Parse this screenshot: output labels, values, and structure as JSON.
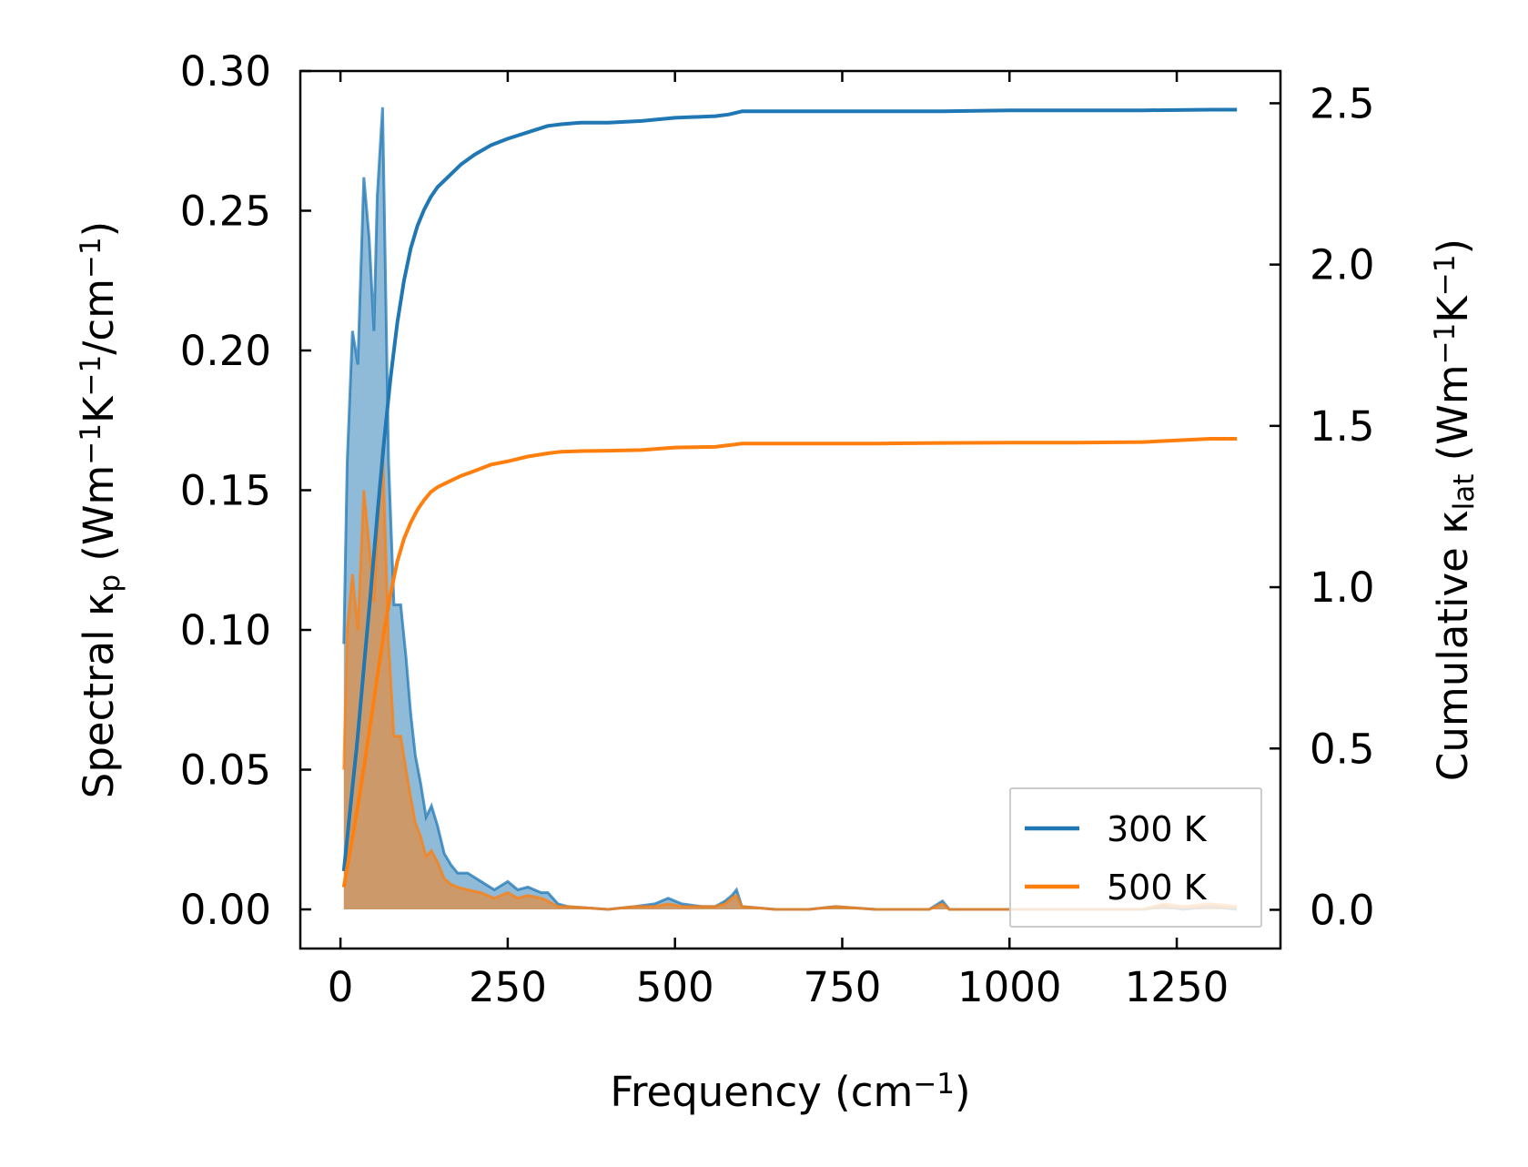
{
  "chart_data": {
    "type": "line",
    "title": "",
    "xlabel": {
      "text": "Frequency (cm",
      "sup": "−1",
      "tail": ")"
    },
    "ylabel_left": {
      "parts": [
        {
          "t": "Spectral κ",
          "s": "n"
        },
        {
          "t": "p",
          "s": "sub"
        },
        {
          "t": " (Wm",
          "s": "n"
        },
        {
          "t": "−1",
          "s": "sup"
        },
        {
          "t": "K",
          "s": "n"
        },
        {
          "t": "−1",
          "s": "sup"
        },
        {
          "t": "/cm",
          "s": "n"
        },
        {
          "t": "−1",
          "s": "sup"
        },
        {
          "t": ")",
          "s": "n"
        }
      ]
    },
    "ylabel_right": {
      "parts": [
        {
          "t": "Cumulative κ",
          "s": "n"
        },
        {
          "t": "lat",
          "s": "sub"
        },
        {
          "t": " (Wm",
          "s": "n"
        },
        {
          "t": "−1",
          "s": "sup"
        },
        {
          "t": "K",
          "s": "n"
        },
        {
          "t": "−1",
          "s": "sup"
        },
        {
          "t": ")",
          "s": "n"
        }
      ]
    },
    "xlim": [
      -60,
      1405
    ],
    "ylim_left": [
      -0.014,
      0.3
    ],
    "ylim_right": [
      -0.12,
      2.6
    ],
    "xticks": [
      {
        "v": 0,
        "label": "0"
      },
      {
        "v": 250,
        "label": "250"
      },
      {
        "v": 500,
        "label": "500"
      },
      {
        "v": 750,
        "label": "750"
      },
      {
        "v": 1000,
        "label": "1000"
      },
      {
        "v": 1250,
        "label": "1250"
      }
    ],
    "yticks_left": [
      {
        "v": 0.0,
        "label": "0.00"
      },
      {
        "v": 0.05,
        "label": "0.05"
      },
      {
        "v": 0.1,
        "label": "0.10"
      },
      {
        "v": 0.15,
        "label": "0.15"
      },
      {
        "v": 0.2,
        "label": "0.20"
      },
      {
        "v": 0.25,
        "label": "0.25"
      },
      {
        "v": 0.3,
        "label": "0.30"
      }
    ],
    "yticks_right": [
      {
        "v": 0.0,
        "label": "0.0"
      },
      {
        "v": 0.5,
        "label": "0.5"
      },
      {
        "v": 1.0,
        "label": "1.0"
      },
      {
        "v": 1.5,
        "label": "1.5"
      },
      {
        "v": 2.0,
        "label": "2.0"
      },
      {
        "v": 2.5,
        "label": "2.5"
      }
    ],
    "legend": {
      "position": "bottom-right"
    },
    "series": [
      {
        "name": "300 K",
        "color": "#1f77b4",
        "spectral": {
          "x": [
            5,
            10,
            18,
            26,
            35,
            43,
            50,
            55,
            63,
            72,
            80,
            90,
            98,
            105,
            112,
            120,
            128,
            136,
            145,
            155,
            165,
            175,
            190,
            210,
            230,
            250,
            265,
            280,
            300,
            310,
            325,
            340,
            400,
            440,
            470,
            490,
            510,
            540,
            560,
            575,
            585,
            592,
            600,
            650,
            700,
            740,
            800,
            850,
            880,
            900,
            910,
            950,
            1000,
            1100,
            1200,
            1230,
            1260,
            1300,
            1340
          ],
          "y": [
            0.095,
            0.16,
            0.207,
            0.195,
            0.262,
            0.24,
            0.207,
            0.255,
            0.287,
            0.16,
            0.109,
            0.109,
            0.09,
            0.07,
            0.055,
            0.045,
            0.033,
            0.037,
            0.03,
            0.02,
            0.016,
            0.013,
            0.013,
            0.01,
            0.007,
            0.01,
            0.007,
            0.008,
            0.006,
            0.006,
            0.002,
            0.001,
            0.0,
            0.001,
            0.002,
            0.004,
            0.002,
            0.001,
            0.001,
            0.003,
            0.005,
            0.007,
            0.001,
            0.0,
            0.0,
            0.001,
            0.0,
            0.0,
            0.0,
            0.003,
            0.0,
            0.0,
            0.0,
            0.0,
            0.0,
            0.001,
            0.0,
            0.001,
            0.0
          ]
        },
        "cumulative": {
          "x": [
            5,
            15,
            25,
            35,
            45,
            55,
            65,
            75,
            85,
            95,
            105,
            115,
            125,
            135,
            145,
            155,
            165,
            180,
            200,
            225,
            250,
            280,
            310,
            330,
            360,
            400,
            450,
            500,
            560,
            580,
            600,
            700,
            800,
            900,
            1000,
            1100,
            1200,
            1300,
            1340
          ],
          "y": [
            0.12,
            0.32,
            0.52,
            0.75,
            0.98,
            1.22,
            1.45,
            1.65,
            1.82,
            1.95,
            2.05,
            2.12,
            2.17,
            2.21,
            2.24,
            2.26,
            2.28,
            2.31,
            2.34,
            2.37,
            2.39,
            2.41,
            2.43,
            2.435,
            2.44,
            2.44,
            2.445,
            2.455,
            2.46,
            2.465,
            2.475,
            2.475,
            2.475,
            2.475,
            2.478,
            2.478,
            2.478,
            2.48,
            2.48
          ]
        }
      },
      {
        "name": "500 K",
        "color": "#ff7f0e",
        "spectral": {
          "x": [
            5,
            10,
            18,
            26,
            35,
            43,
            50,
            55,
            63,
            72,
            80,
            90,
            98,
            105,
            112,
            120,
            128,
            136,
            145,
            155,
            165,
            175,
            190,
            210,
            230,
            250,
            265,
            280,
            300,
            310,
            325,
            340,
            400,
            440,
            470,
            490,
            510,
            540,
            560,
            575,
            585,
            592,
            600,
            650,
            700,
            740,
            800,
            850,
            880,
            900,
            910,
            950,
            1000,
            1100,
            1200,
            1230,
            1260,
            1300,
            1340
          ],
          "y": [
            0.05,
            0.1,
            0.12,
            0.1,
            0.15,
            0.13,
            0.11,
            0.135,
            0.165,
            0.095,
            0.062,
            0.062,
            0.05,
            0.04,
            0.031,
            0.026,
            0.019,
            0.021,
            0.017,
            0.011,
            0.009,
            0.008,
            0.007,
            0.006,
            0.004,
            0.006,
            0.004,
            0.005,
            0.004,
            0.003,
            0.001,
            0.001,
            0.0,
            0.001,
            0.001,
            0.002,
            0.001,
            0.001,
            0.001,
            0.002,
            0.004,
            0.005,
            0.001,
            0.0,
            0.0,
            0.001,
            0.0,
            0.0,
            0.0,
            0.002,
            0.0,
            0.0,
            0.0,
            0.0,
            0.0,
            0.002,
            0.001,
            0.002,
            0.001
          ]
        },
        "cumulative": {
          "x": [
            5,
            15,
            25,
            35,
            45,
            55,
            65,
            75,
            85,
            95,
            105,
            115,
            125,
            135,
            145,
            155,
            165,
            180,
            200,
            225,
            250,
            280,
            310,
            330,
            360,
            400,
            450,
            500,
            560,
            580,
            600,
            700,
            800,
            900,
            1000,
            1100,
            1200,
            1300,
            1340
          ],
          "y": [
            0.07,
            0.19,
            0.31,
            0.44,
            0.58,
            0.72,
            0.86,
            0.98,
            1.08,
            1.15,
            1.2,
            1.24,
            1.27,
            1.295,
            1.31,
            1.32,
            1.33,
            1.345,
            1.36,
            1.38,
            1.39,
            1.405,
            1.415,
            1.42,
            1.422,
            1.423,
            1.425,
            1.433,
            1.435,
            1.44,
            1.445,
            1.445,
            1.445,
            1.447,
            1.448,
            1.448,
            1.45,
            1.46,
            1.46
          ]
        }
      }
    ]
  }
}
